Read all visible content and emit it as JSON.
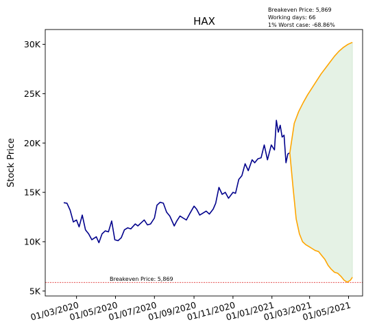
{
  "chart_data": {
    "type": "line",
    "title": "HAX",
    "xlabel": "",
    "ylabel": "Stock Price",
    "x_tick_labels": [
      "01/03/2020",
      "01/05/2020",
      "01/07/2020",
      "01/09/2020",
      "01/11/2020",
      "01/01/2021",
      "01/03/2021",
      "01/05/2021"
    ],
    "y_tick_labels": [
      "5K",
      "10K",
      "15K",
      "20K",
      "25K",
      "30K"
    ],
    "y_ticks": [
      5000,
      10000,
      15000,
      20000,
      25000,
      30000
    ],
    "ylim": [
      4500,
      31500
    ],
    "info_lines": [
      "Breakeven Price: 5,869",
      "Working days: 66",
      "1% Worst case: -68.86%"
    ],
    "breakeven_label": "Breakeven Price: 5,869",
    "breakeven_price": 5869,
    "colors": {
      "history": "#00008b",
      "projection": "#ffa500",
      "band_fill": "#e5f2e5",
      "breakeven": "#e03030"
    },
    "series": [
      {
        "points": [
          [
            "2020-02-10",
            13950
          ],
          [
            "2020-02-15",
            13900
          ],
          [
            "2020-02-20",
            13200
          ],
          [
            "2020-02-25",
            12000
          ],
          [
            "2020-03-01",
            12200
          ],
          [
            "2020-03-05",
            11500
          ],
          [
            "2020-03-10",
            12700
          ],
          [
            "2020-03-15",
            11200
          ],
          [
            "2020-03-20",
            10800
          ],
          [
            "2020-03-25",
            10200
          ],
          [
            "2020-04-01",
            10500
          ],
          [
            "2020-04-05",
            9900
          ],
          [
            "2020-04-10",
            10800
          ],
          [
            "2020-04-15",
            11100
          ],
          [
            "2020-04-20",
            11000
          ],
          [
            "2020-04-25",
            12100
          ],
          [
            "2020-04-30",
            10200
          ],
          [
            "2020-05-05",
            10100
          ],
          [
            "2020-05-10",
            10400
          ],
          [
            "2020-05-15",
            11200
          ],
          [
            "2020-05-20",
            11400
          ],
          [
            "2020-05-25",
            11300
          ],
          [
            "2020-06-01",
            11800
          ],
          [
            "2020-06-05",
            11600
          ],
          [
            "2020-06-10",
            11900
          ],
          [
            "2020-06-15",
            12200
          ],
          [
            "2020-06-20",
            11700
          ],
          [
            "2020-06-25",
            11800
          ],
          [
            "2020-07-01",
            12400
          ],
          [
            "2020-07-05",
            13700
          ],
          [
            "2020-07-10",
            14000
          ],
          [
            "2020-07-15",
            13900
          ],
          [
            "2020-07-20",
            13000
          ],
          [
            "2020-07-25",
            12600
          ],
          [
            "2020-08-01",
            11600
          ],
          [
            "2020-08-05",
            12100
          ],
          [
            "2020-08-10",
            12600
          ],
          [
            "2020-08-15",
            12400
          ],
          [
            "2020-08-20",
            12200
          ],
          [
            "2020-08-25",
            12800
          ],
          [
            "2020-09-01",
            13600
          ],
          [
            "2020-09-05",
            13300
          ],
          [
            "2020-09-10",
            12700
          ],
          [
            "2020-09-15",
            12900
          ],
          [
            "2020-09-20",
            13100
          ],
          [
            "2020-09-25",
            12800
          ],
          [
            "2020-10-01",
            13300
          ],
          [
            "2020-10-05",
            13900
          ],
          [
            "2020-10-10",
            15500
          ],
          [
            "2020-10-15",
            14800
          ],
          [
            "2020-10-20",
            15000
          ],
          [
            "2020-10-25",
            14400
          ],
          [
            "2020-11-01",
            15000
          ],
          [
            "2020-11-05",
            14900
          ],
          [
            "2020-11-10",
            16300
          ],
          [
            "2020-11-15",
            16700
          ],
          [
            "2020-11-20",
            17900
          ],
          [
            "2020-11-25",
            17200
          ],
          [
            "2020-12-01",
            18300
          ],
          [
            "2020-12-05",
            18000
          ],
          [
            "2020-12-10",
            18400
          ],
          [
            "2020-12-15",
            18500
          ],
          [
            "2020-12-20",
            19800
          ],
          [
            "2020-12-25",
            18300
          ],
          [
            "2020-12-31",
            19800
          ],
          [
            "2021-01-05",
            19300
          ],
          [
            "2021-01-08",
            22300
          ],
          [
            "2021-01-11",
            21100
          ],
          [
            "2021-01-14",
            21800
          ],
          [
            "2021-01-17",
            20600
          ],
          [
            "2021-01-20",
            20800
          ],
          [
            "2021-01-23",
            18000
          ],
          [
            "2021-01-26",
            18900
          ],
          [
            "2021-01-29",
            19000
          ]
        ]
      },
      {
        "points": [
          [
            "2021-01-29",
            19000
          ],
          [
            "2021-02-05",
            22000
          ],
          [
            "2021-02-12",
            23200
          ],
          [
            "2021-02-19",
            24100
          ],
          [
            "2021-02-26",
            24900
          ],
          [
            "2021-03-05",
            25600
          ],
          [
            "2021-03-12",
            26300
          ],
          [
            "2021-03-19",
            27000
          ],
          [
            "2021-03-26",
            27600
          ],
          [
            "2021-04-02",
            28200
          ],
          [
            "2021-04-09",
            28800
          ],
          [
            "2021-04-16",
            29300
          ],
          [
            "2021-04-23",
            29700
          ],
          [
            "2021-04-30",
            30000
          ],
          [
            "2021-05-07",
            30200
          ]
        ]
      },
      {
        "points": [
          [
            "2021-01-29",
            19000
          ],
          [
            "2021-02-03",
            15500
          ],
          [
            "2021-02-08",
            12300
          ],
          [
            "2021-02-13",
            10800
          ],
          [
            "2021-02-18",
            10000
          ],
          [
            "2021-02-23",
            9700
          ],
          [
            "2021-02-28",
            9500
          ],
          [
            "2021-03-05",
            9300
          ],
          [
            "2021-03-10",
            9100
          ],
          [
            "2021-03-15",
            9000
          ],
          [
            "2021-03-20",
            8600
          ],
          [
            "2021-03-25",
            8200
          ],
          [
            "2021-03-30",
            7600
          ],
          [
            "2021-04-04",
            7200
          ],
          [
            "2021-04-09",
            6900
          ],
          [
            "2021-04-14",
            6800
          ],
          [
            "2021-04-19",
            6500
          ],
          [
            "2021-04-24",
            6100
          ],
          [
            "2021-04-29",
            5900
          ],
          [
            "2021-05-04",
            6100
          ],
          [
            "2021-05-07",
            6400
          ]
        ]
      }
    ]
  }
}
